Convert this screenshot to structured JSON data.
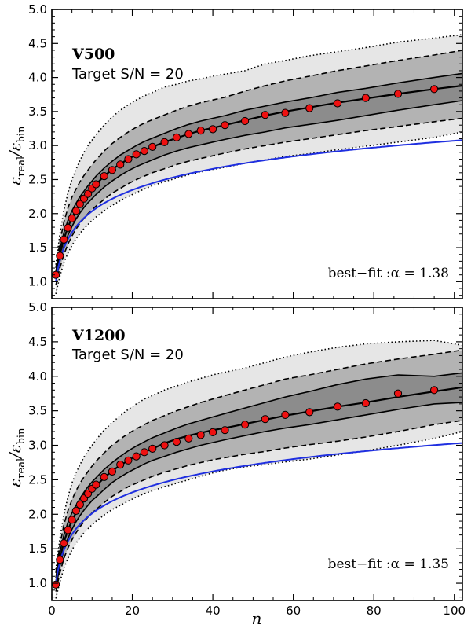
{
  "chart_data": [
    {
      "type": "line",
      "title": "V500",
      "subtitle": "Target S/N = 20",
      "annotation": "best−fit :α = 1.38",
      "fit_alpha": 1.38,
      "xlabel": "n",
      "ylabel_main": "ε",
      "ylabel_num_sub": "real",
      "ylabel_den_sub": "bin",
      "xlim": [
        0,
        102
      ],
      "ylim": [
        0.75,
        5.0
      ],
      "xticks": [
        0,
        20,
        40,
        60,
        80,
        100
      ],
      "xtick_labels": [
        "0",
        "20",
        "40",
        "60",
        "80",
        "100"
      ],
      "yticks": [
        1.0,
        1.5,
        2.0,
        2.5,
        3.0,
        3.5,
        4.0,
        4.5,
        5.0
      ],
      "ytick_labels": [
        "1.0",
        "1.5",
        "2.0",
        "2.5",
        "3.0",
        "3.5",
        "4.0",
        "4.5",
        "5.0"
      ],
      "x": [
        1,
        2,
        3,
        4,
        5,
        6,
        7,
        8,
        9,
        10,
        11,
        13,
        15,
        17,
        19,
        21,
        23,
        25,
        28,
        31,
        34,
        37,
        40,
        43,
        48,
        53,
        58,
        64,
        71,
        78,
        86,
        95,
        102
      ],
      "series": [
        {
          "name": "outer_upper",
          "style": "dotted",
          "values": [
            1.25,
            1.7,
            2.05,
            2.3,
            2.5,
            2.65,
            2.78,
            2.9,
            3.0,
            3.08,
            3.16,
            3.3,
            3.42,
            3.52,
            3.6,
            3.67,
            3.73,
            3.78,
            3.86,
            3.9,
            3.95,
            3.98,
            4.02,
            4.05,
            4.1,
            4.2,
            4.25,
            4.32,
            4.38,
            4.44,
            4.52,
            4.58,
            4.63
          ]
        },
        {
          "name": "mid_upper",
          "style": "dashed",
          "values": [
            1.2,
            1.58,
            1.88,
            2.08,
            2.24,
            2.36,
            2.47,
            2.56,
            2.64,
            2.72,
            2.79,
            2.92,
            3.03,
            3.12,
            3.2,
            3.27,
            3.33,
            3.38,
            3.45,
            3.52,
            3.58,
            3.63,
            3.67,
            3.71,
            3.8,
            3.88,
            3.95,
            4.02,
            4.1,
            4.17,
            4.25,
            4.33,
            4.4
          ]
        },
        {
          "name": "inner_upper",
          "style": "solid",
          "values": [
            1.15,
            1.48,
            1.72,
            1.9,
            2.04,
            2.15,
            2.25,
            2.33,
            2.41,
            2.48,
            2.55,
            2.67,
            2.77,
            2.86,
            2.93,
            3.0,
            3.06,
            3.11,
            3.18,
            3.25,
            3.31,
            3.36,
            3.4,
            3.44,
            3.52,
            3.58,
            3.64,
            3.7,
            3.78,
            3.84,
            3.92,
            4.0,
            4.06
          ]
        },
        {
          "name": "median",
          "style": "solid",
          "values": [
            1.08,
            1.4,
            1.63,
            1.8,
            1.94,
            2.05,
            2.15,
            2.23,
            2.3,
            2.37,
            2.43,
            2.55,
            2.65,
            2.73,
            2.8,
            2.87,
            2.93,
            2.98,
            3.05,
            3.11,
            3.17,
            3.22,
            3.26,
            3.3,
            3.37,
            3.44,
            3.5,
            3.56,
            3.63,
            3.69,
            3.76,
            3.83,
            3.88
          ]
        },
        {
          "name": "inner_lower",
          "style": "solid",
          "values": [
            1.0,
            1.3,
            1.52,
            1.68,
            1.81,
            1.92,
            2.01,
            2.09,
            2.16,
            2.22,
            2.28,
            2.39,
            2.48,
            2.56,
            2.63,
            2.69,
            2.74,
            2.79,
            2.86,
            2.92,
            2.97,
            3.01,
            3.05,
            3.09,
            3.15,
            3.2,
            3.26,
            3.31,
            3.37,
            3.44,
            3.52,
            3.6,
            3.66
          ]
        },
        {
          "name": "mid_lower",
          "style": "dashed",
          "values": [
            0.95,
            1.2,
            1.4,
            1.55,
            1.67,
            1.77,
            1.86,
            1.93,
            2.0,
            2.06,
            2.11,
            2.21,
            2.3,
            2.37,
            2.44,
            2.5,
            2.55,
            2.6,
            2.66,
            2.72,
            2.77,
            2.81,
            2.85,
            2.89,
            2.95,
            3.0,
            3.05,
            3.1,
            3.16,
            3.22,
            3.28,
            3.35,
            3.4
          ]
        },
        {
          "name": "outer_lower",
          "style": "dotted",
          "values": [
            0.82,
            1.08,
            1.28,
            1.42,
            1.53,
            1.63,
            1.71,
            1.78,
            1.84,
            1.9,
            1.95,
            2.04,
            2.12,
            2.19,
            2.25,
            2.31,
            2.36,
            2.41,
            2.47,
            2.52,
            2.57,
            2.61,
            2.65,
            2.68,
            2.74,
            2.79,
            2.84,
            2.88,
            2.94,
            2.99,
            3.05,
            3.12,
            3.2
          ]
        }
      ],
      "fit": {
        "name": "best-fit",
        "color": "#1f2fe0",
        "x_start": 1,
        "x_end": 102
      },
      "points": {
        "name": "measured",
        "color": "#ee1111",
        "x": [
          1,
          2,
          3,
          4,
          5,
          6,
          7,
          8,
          9,
          10,
          11,
          13,
          15,
          17,
          19,
          21,
          23,
          25,
          28,
          31,
          34,
          37,
          40,
          43,
          48,
          53,
          58,
          64,
          71,
          78,
          86,
          95
        ],
        "y": [
          1.1,
          1.38,
          1.62,
          1.79,
          1.93,
          2.04,
          2.14,
          2.22,
          2.29,
          2.37,
          2.43,
          2.55,
          2.64,
          2.72,
          2.8,
          2.87,
          2.92,
          2.98,
          3.05,
          3.12,
          3.17,
          3.22,
          3.24,
          3.3,
          3.36,
          3.45,
          3.48,
          3.55,
          3.62,
          3.7,
          3.76,
          3.83
        ]
      }
    },
    {
      "type": "line",
      "title": "V1200",
      "subtitle": "Target S/N = 20",
      "annotation": "best−fit :α = 1.35",
      "fit_alpha": 1.35,
      "xlabel": "n",
      "ylabel_main": "ε",
      "ylabel_num_sub": "real",
      "ylabel_den_sub": "bin",
      "xlim": [
        0,
        102
      ],
      "ylim": [
        0.75,
        5.0
      ],
      "xticks": [
        0,
        20,
        40,
        60,
        80,
        100
      ],
      "xtick_labels": [
        "0",
        "20",
        "40",
        "60",
        "80",
        "100"
      ],
      "yticks": [
        1.0,
        1.5,
        2.0,
        2.5,
        3.0,
        3.5,
        4.0,
        4.5,
        5.0
      ],
      "ytick_labels": [
        "1.0",
        "1.5",
        "2.0",
        "2.5",
        "3.0",
        "3.5",
        "4.0",
        "4.5",
        "5.0"
      ],
      "x": [
        1,
        2,
        3,
        4,
        5,
        6,
        7,
        8,
        9,
        10,
        11,
        13,
        15,
        17,
        19,
        21,
        23,
        25,
        28,
        31,
        34,
        37,
        40,
        43,
        48,
        53,
        58,
        64,
        71,
        78,
        86,
        95,
        102
      ],
      "series": [
        {
          "name": "outer_upper",
          "style": "dotted",
          "values": [
            1.2,
            1.65,
            2.0,
            2.25,
            2.45,
            2.6,
            2.72,
            2.83,
            2.92,
            3.0,
            3.08,
            3.22,
            3.33,
            3.43,
            3.52,
            3.6,
            3.67,
            3.72,
            3.8,
            3.86,
            3.92,
            3.97,
            4.02,
            4.06,
            4.12,
            4.2,
            4.28,
            4.35,
            4.42,
            4.47,
            4.5,
            4.52,
            4.45
          ]
        },
        {
          "name": "mid_upper",
          "style": "dashed",
          "values": [
            1.15,
            1.55,
            1.85,
            2.05,
            2.21,
            2.34,
            2.45,
            2.54,
            2.62,
            2.7,
            2.77,
            2.89,
            3.0,
            3.09,
            3.17,
            3.24,
            3.3,
            3.36,
            3.43,
            3.5,
            3.56,
            3.62,
            3.67,
            3.72,
            3.8,
            3.88,
            3.96,
            4.02,
            4.1,
            4.18,
            4.25,
            4.32,
            4.38
          ]
        },
        {
          "name": "inner_upper",
          "style": "solid",
          "values": [
            1.08,
            1.45,
            1.7,
            1.88,
            2.02,
            2.13,
            2.23,
            2.32,
            2.4,
            2.47,
            2.53,
            2.65,
            2.75,
            2.84,
            2.92,
            2.99,
            3.05,
            3.11,
            3.18,
            3.25,
            3.31,
            3.36,
            3.41,
            3.46,
            3.54,
            3.62,
            3.7,
            3.78,
            3.88,
            3.96,
            4.02,
            4.0,
            4.05
          ]
        },
        {
          "name": "median",
          "style": "solid",
          "values": [
            1.0,
            1.35,
            1.6,
            1.77,
            1.91,
            2.02,
            2.12,
            2.2,
            2.28,
            2.35,
            2.41,
            2.53,
            2.63,
            2.71,
            2.78,
            2.85,
            2.9,
            2.95,
            3.03,
            3.09,
            3.14,
            3.18,
            3.22,
            3.25,
            3.31,
            3.37,
            3.43,
            3.49,
            3.56,
            3.62,
            3.7,
            3.78,
            3.84
          ]
        },
        {
          "name": "inner_lower",
          "style": "solid",
          "values": [
            0.93,
            1.25,
            1.48,
            1.65,
            1.78,
            1.89,
            1.98,
            2.06,
            2.13,
            2.2,
            2.25,
            2.36,
            2.46,
            2.54,
            2.61,
            2.67,
            2.73,
            2.78,
            2.84,
            2.9,
            2.95,
            3.0,
            3.04,
            3.08,
            3.14,
            3.2,
            3.25,
            3.3,
            3.37,
            3.44,
            3.52,
            3.6,
            3.62
          ]
        },
        {
          "name": "mid_lower",
          "style": "dashed",
          "values": [
            0.88,
            1.15,
            1.36,
            1.51,
            1.63,
            1.73,
            1.82,
            1.89,
            1.96,
            2.02,
            2.07,
            2.17,
            2.26,
            2.33,
            2.4,
            2.45,
            2.5,
            2.55,
            2.61,
            2.66,
            2.71,
            2.75,
            2.79,
            2.82,
            2.87,
            2.91,
            2.96,
            3.01,
            3.06,
            3.12,
            3.2,
            3.3,
            3.36
          ]
        },
        {
          "name": "outer_lower",
          "style": "dotted",
          "values": [
            0.78,
            1.02,
            1.22,
            1.36,
            1.48,
            1.58,
            1.66,
            1.73,
            1.79,
            1.85,
            1.9,
            1.99,
            2.07,
            2.13,
            2.19,
            2.25,
            2.3,
            2.34,
            2.4,
            2.45,
            2.5,
            2.55,
            2.6,
            2.64,
            2.69,
            2.72,
            2.76,
            2.8,
            2.86,
            2.92,
            3.0,
            3.1,
            3.2
          ]
        }
      ],
      "fit": {
        "name": "best-fit",
        "color": "#1f2fe0",
        "x_start": 1,
        "x_end": 102
      },
      "points": {
        "name": "measured",
        "color": "#ee1111",
        "x": [
          1,
          2,
          3,
          4,
          5,
          6,
          7,
          8,
          9,
          10,
          11,
          13,
          15,
          17,
          19,
          21,
          23,
          25,
          28,
          31,
          34,
          37,
          40,
          43,
          48,
          53,
          58,
          64,
          71,
          78,
          86,
          95
        ],
        "y": [
          0.98,
          1.34,
          1.58,
          1.77,
          1.92,
          2.05,
          2.14,
          2.23,
          2.3,
          2.37,
          2.43,
          2.54,
          2.62,
          2.72,
          2.78,
          2.84,
          2.9,
          2.95,
          3.0,
          3.05,
          3.1,
          3.15,
          3.19,
          3.22,
          3.3,
          3.38,
          3.44,
          3.48,
          3.56,
          3.61,
          3.75,
          3.8
        ]
      }
    }
  ]
}
